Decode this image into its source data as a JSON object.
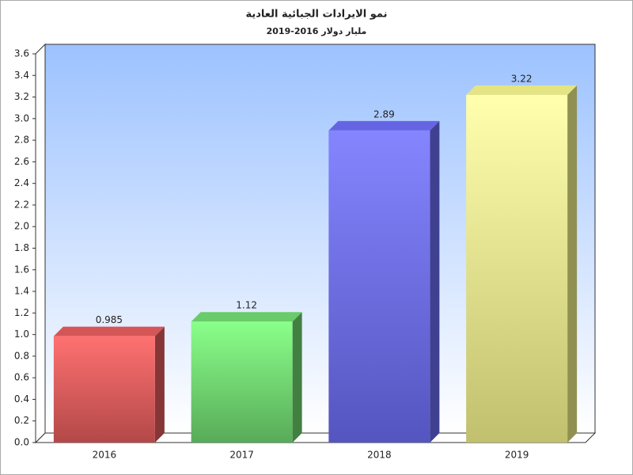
{
  "chart_data": {
    "type": "bar3d",
    "title": "نمو الايرادات الجبائية العادية",
    "subtitle": "مليار دولار 2016-2019",
    "categories": [
      "2016",
      "2017",
      "2018",
      "2019"
    ],
    "values": [
      0.985,
      1.12,
      2.89,
      3.22
    ],
    "colors": [
      "#e05a5a",
      "#6ed66e",
      "#6a6af0",
      "#f0f08a"
    ],
    "ylim": [
      0,
      3.6
    ],
    "yticks": [
      {
        "value": 0,
        "label": "0.0"
      },
      0.2,
      0.4,
      0.6,
      0.8,
      {
        "value": 1,
        "label": "1.0"
      },
      1.2,
      1.4,
      1.6,
      1.8,
      {
        "value": 2,
        "label": "2.0"
      },
      2.2,
      2.4,
      2.6,
      2.8,
      {
        "value": 3,
        "label": "3.0"
      },
      3.2,
      3.4,
      3.6
    ],
    "grid": false
  }
}
